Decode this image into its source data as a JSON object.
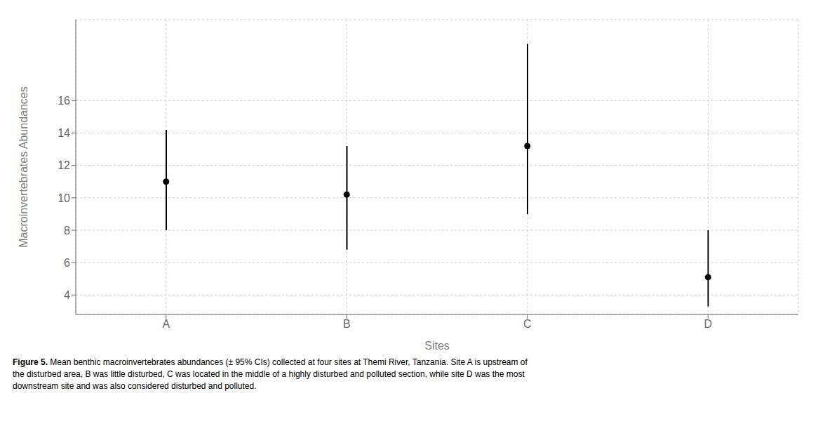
{
  "chart_data": {
    "type": "errorbar",
    "categories": [
      "A",
      "B",
      "C",
      "D"
    ],
    "values": [
      11.0,
      10.2,
      13.2,
      5.1
    ],
    "ci_lower": [
      8.0,
      6.8,
      9.0,
      3.3
    ],
    "ci_upper": [
      14.2,
      13.2,
      19.5,
      8.0
    ],
    "xlabel": "Sites",
    "ylabel": "Macroinvertebrates Abundances",
    "ylim": [
      2.8,
      21.0
    ],
    "yticks": [
      4,
      6,
      8,
      10,
      12,
      14,
      16
    ],
    "color": "#000000",
    "grid": true,
    "caption": {
      "label": "Figure 5.",
      "text": " Mean benthic macroinvertebrates abundances (± 95% CIs) collected at four sites at Themi River, Tanzania. Site A is upstream of\nthe disturbed area, B was little disturbed, C was located in the middle of a highly disturbed and polluted section, while site D was the most\ndownstream site and was also considered disturbed and polluted."
    }
  }
}
